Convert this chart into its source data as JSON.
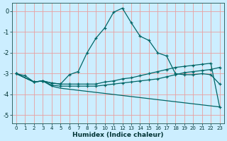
{
  "xlabel": "Humidex (Indice chaleur)",
  "bg_color": "#cceeff",
  "grid_color": "#e8a0a0",
  "line_color": "#006666",
  "xlim": [
    -0.5,
    23.5
  ],
  "ylim": [
    -5.4,
    0.4
  ],
  "yticks": [
    0,
    -1,
    -2,
    -3,
    -4,
    -5
  ],
  "xticks": [
    0,
    1,
    2,
    3,
    4,
    5,
    6,
    7,
    8,
    9,
    10,
    11,
    12,
    13,
    14,
    15,
    16,
    17,
    18,
    19,
    20,
    21,
    22,
    23
  ],
  "line1_x": [
    0,
    1,
    2,
    3,
    4,
    5,
    6,
    7,
    8,
    9,
    10,
    11,
    12,
    13,
    14,
    15,
    16,
    17,
    18,
    19,
    20,
    21,
    22,
    23
  ],
  "line1_y": [
    -3.0,
    -3.1,
    -3.4,
    -3.35,
    -3.45,
    -3.5,
    -3.05,
    -2.9,
    -2.0,
    -1.3,
    -0.8,
    -0.05,
    0.15,
    -0.55,
    -1.2,
    -1.4,
    -2.0,
    -2.15,
    -3.0,
    -3.05,
    -3.05,
    -3.0,
    -3.05,
    -3.5
  ],
  "line2_x": [
    0,
    2,
    3,
    4,
    5,
    6,
    7,
    8,
    9,
    10,
    11,
    12,
    13,
    14,
    15,
    16,
    17,
    18,
    19,
    20,
    21,
    22,
    23
  ],
  "line2_y": [
    -3.0,
    -3.4,
    -3.35,
    -3.45,
    -3.5,
    -3.5,
    -3.5,
    -3.5,
    -3.5,
    -3.4,
    -3.35,
    -3.25,
    -3.2,
    -3.1,
    -3.0,
    -2.9,
    -2.8,
    -2.7,
    -2.65,
    -2.6,
    -2.55,
    -2.5,
    -4.6
  ],
  "line3_x": [
    0,
    2,
    3,
    4,
    5,
    6,
    7,
    8,
    9,
    10,
    11,
    12,
    13,
    14,
    15,
    16,
    17,
    18,
    19,
    20,
    21,
    22,
    23
  ],
  "line3_y": [
    -3.0,
    -3.4,
    -3.35,
    -3.55,
    -3.6,
    -3.6,
    -3.6,
    -3.6,
    -3.6,
    -3.55,
    -3.5,
    -3.45,
    -3.4,
    -3.35,
    -3.3,
    -3.25,
    -3.15,
    -3.05,
    -2.95,
    -2.9,
    -2.85,
    -2.8,
    -2.7
  ],
  "line4_x": [
    0,
    2,
    3,
    4,
    5,
    6,
    7,
    8,
    9,
    10,
    11,
    12,
    13,
    14,
    15,
    16,
    17,
    18,
    19,
    20,
    21,
    22,
    23
  ],
  "line4_y": [
    -3.0,
    -3.4,
    -3.35,
    -3.6,
    -3.7,
    -3.75,
    -3.8,
    -3.85,
    -3.9,
    -3.95,
    -4.0,
    -4.05,
    -4.1,
    -4.15,
    -4.2,
    -4.25,
    -4.3,
    -4.35,
    -4.4,
    -4.45,
    -4.5,
    -4.55,
    -4.6
  ]
}
